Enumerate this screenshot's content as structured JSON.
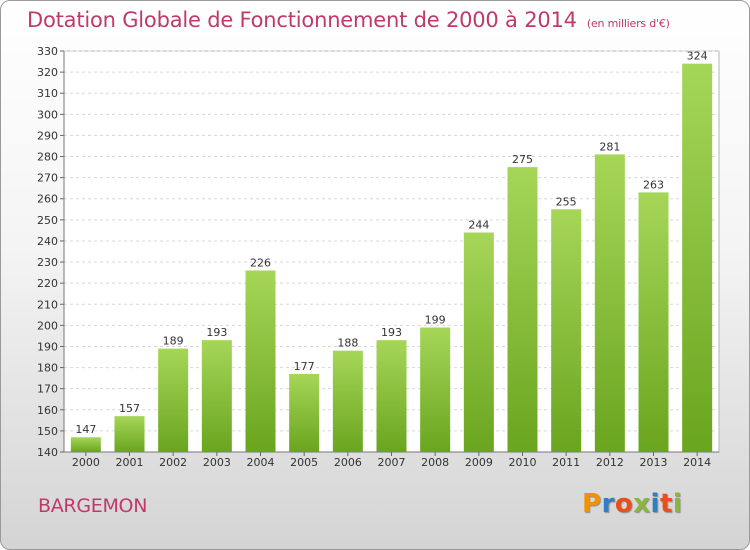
{
  "title": "Dotation Globale de Fonctionnement de 2000 à 2014",
  "subtitle": "(en milliers d'€)",
  "commune": "BARGEMON",
  "logo": {
    "letters": [
      "P",
      "r",
      "o",
      "x",
      "i",
      "t",
      "i"
    ],
    "colors": [
      "#f39200",
      "#2f7fc1",
      "#e94e1b",
      "#8ab53f",
      "#2f7fc1",
      "#e94e1b",
      "#8ab53f"
    ]
  },
  "colors": {
    "bar_light": "#a6d658",
    "bar_dark": "#6aa51f",
    "title": "#c0396b"
  },
  "chart_data": {
    "type": "bar",
    "categories": [
      "2000",
      "2001",
      "2002",
      "2003",
      "2004",
      "2005",
      "2006",
      "2007",
      "2008",
      "2009",
      "2010",
      "2011",
      "2012",
      "2013",
      "2014"
    ],
    "values": [
      147,
      157,
      189,
      193,
      226,
      177,
      188,
      193,
      199,
      244,
      275,
      255,
      281,
      263,
      324
    ],
    "ylim": [
      140,
      330
    ],
    "ytick_step": 10,
    "grid": true,
    "xlabel": "",
    "ylabel": ""
  }
}
